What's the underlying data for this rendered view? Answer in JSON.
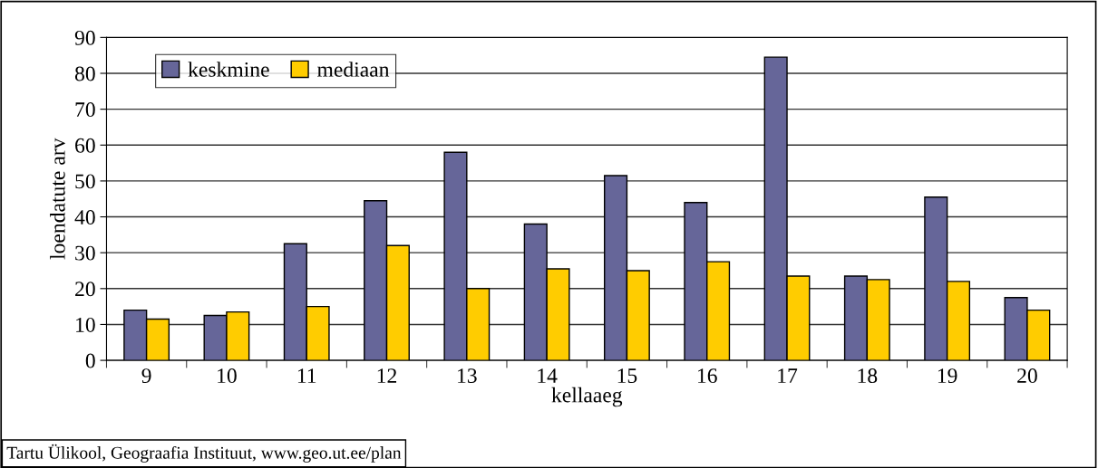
{
  "chart_data": {
    "type": "bar",
    "categories": [
      "9",
      "10",
      "11",
      "12",
      "13",
      "14",
      "15",
      "16",
      "17",
      "18",
      "19",
      "20"
    ],
    "series": [
      {
        "name": "keskmine",
        "color": "#666699",
        "values": [
          14,
          12.5,
          32.5,
          44.5,
          58,
          38,
          51.5,
          44,
          84.5,
          23.5,
          45.5,
          17.5
        ]
      },
      {
        "name": "mediaan",
        "color": "#ffcc00",
        "values": [
          11.5,
          13.5,
          15,
          32,
          20,
          25.5,
          25,
          27.5,
          23.5,
          22.5,
          22,
          14
        ]
      }
    ],
    "xlabel": "kellaaeg",
    "ylabel": "loendatute arv",
    "ylim": [
      0,
      90
    ],
    "yticks": [
      0,
      10,
      20,
      30,
      40,
      50,
      60,
      70,
      80,
      90
    ],
    "grid": "y",
    "legend": "top left",
    "annotations": [
      "Tartu Ülikool, Geograafia Instituut, www.geo.ut.ee/plan"
    ]
  }
}
